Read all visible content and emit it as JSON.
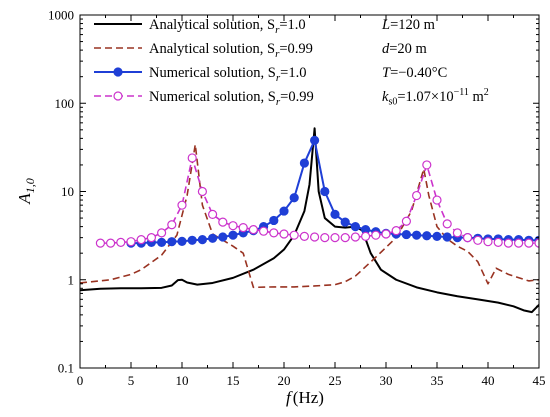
{
  "chart_data": {
    "type": "line",
    "xlabel": {
      "main": "f",
      "unit": "(Hz)"
    },
    "ylabel": {
      "main": "A",
      "sub": "1,0"
    },
    "xlim": [
      0,
      45
    ],
    "ylim": [
      0.1,
      1000
    ],
    "yscale": "log",
    "grid": false,
    "legend_position": "top-left",
    "x_ticks": [
      0,
      5,
      10,
      15,
      20,
      25,
      30,
      35,
      40,
      45
    ],
    "y_ticks": [
      {
        "value": 0.1,
        "label": "0.1"
      },
      {
        "value": 1,
        "label": "1"
      },
      {
        "value": 10,
        "label": "10"
      },
      {
        "value": 100,
        "label": "100"
      },
      {
        "value": 1000,
        "label": "1000"
      }
    ],
    "series": [
      {
        "name": "Analytical solution, Sr=1.0",
        "legend": {
          "text": "Analytical solution, S",
          "sub": "r",
          "suffix": "=1.0"
        },
        "style": "solid",
        "color": "#000000",
        "marker": "none",
        "points": [
          [
            0,
            0.76
          ],
          [
            2,
            0.79
          ],
          [
            4,
            0.8
          ],
          [
            6,
            0.8
          ],
          [
            8,
            0.81
          ],
          [
            9,
            0.86
          ],
          [
            9.6,
            0.99
          ],
          [
            10,
            1.0
          ],
          [
            10.5,
            0.93
          ],
          [
            11.5,
            0.88
          ],
          [
            13,
            0.92
          ],
          [
            15,
            1.05
          ],
          [
            17,
            1.3
          ],
          [
            19,
            1.75
          ],
          [
            20,
            2.2
          ],
          [
            21,
            3.2
          ],
          [
            22,
            6
          ],
          [
            22.5,
            12
          ],
          [
            23,
            52
          ],
          [
            23.4,
            10
          ],
          [
            24,
            5
          ],
          [
            25,
            4
          ],
          [
            26,
            3.9
          ],
          [
            27,
            4.0
          ],
          [
            27.7,
            3.6
          ],
          [
            28.5,
            2.0
          ],
          [
            29.5,
            1.3
          ],
          [
            31,
            1.0
          ],
          [
            33,
            0.82
          ],
          [
            35,
            0.72
          ],
          [
            37,
            0.65
          ],
          [
            39,
            0.6
          ],
          [
            41,
            0.55
          ],
          [
            42.5,
            0.5
          ],
          [
            43.5,
            0.45
          ],
          [
            44.3,
            0.43
          ],
          [
            45,
            0.52
          ]
        ]
      },
      {
        "name": "Analytical solution, Sr=0.99",
        "legend": {
          "text": "Analytical solution, S",
          "sub": "r",
          "suffix": "=0.99"
        },
        "style": "dashed",
        "color": "#993322",
        "marker": "none",
        "points": [
          [
            0,
            0.92
          ],
          [
            3,
            1.0
          ],
          [
            5,
            1.15
          ],
          [
            6,
            1.3
          ],
          [
            8,
            1.9
          ],
          [
            9.5,
            3.2
          ],
          [
            10.5,
            9
          ],
          [
            11.3,
            34
          ],
          [
            12,
            7
          ],
          [
            13,
            3.3
          ],
          [
            15,
            2.4
          ],
          [
            16,
            2.0
          ],
          [
            17,
            0.82
          ],
          [
            19,
            0.83
          ],
          [
            21,
            0.83
          ],
          [
            23,
            0.85
          ],
          [
            25,
            0.88
          ],
          [
            26,
            0.95
          ],
          [
            27,
            1.1
          ],
          [
            29,
            1.8
          ],
          [
            31,
            3.0
          ],
          [
            32.5,
            6
          ],
          [
            33.7,
            18
          ],
          [
            34.2,
            9
          ],
          [
            35,
            4
          ],
          [
            36,
            2.9
          ],
          [
            37,
            2.4
          ],
          [
            38,
            2.1
          ],
          [
            39,
            1.6
          ],
          [
            40,
            0.9
          ],
          [
            40.8,
            1.35
          ],
          [
            42,
            1.15
          ],
          [
            44,
            0.97
          ],
          [
            45,
            1.0
          ]
        ]
      },
      {
        "name": "Numerical solution, Sr=1.0",
        "legend": {
          "text": "Numerical solution, S",
          "sub": "r",
          "suffix": "=1.0"
        },
        "style": "solid",
        "color": "#1f3fd6",
        "marker": "filled-circle",
        "points": [
          [
            5,
            2.6
          ],
          [
            6,
            2.6
          ],
          [
            7,
            2.65
          ],
          [
            8,
            2.65
          ],
          [
            9,
            2.7
          ],
          [
            10,
            2.72
          ],
          [
            11,
            2.8
          ],
          [
            12,
            2.85
          ],
          [
            13,
            2.95
          ],
          [
            14,
            3.05
          ],
          [
            15,
            3.2
          ],
          [
            16,
            3.4
          ],
          [
            17,
            3.6
          ],
          [
            18,
            4.0
          ],
          [
            19,
            4.7
          ],
          [
            20,
            6.0
          ],
          [
            21,
            8.5
          ],
          [
            22,
            21
          ],
          [
            23,
            38
          ],
          [
            24,
            10
          ],
          [
            25,
            5.5
          ],
          [
            26,
            4.5
          ],
          [
            27,
            4.0
          ],
          [
            28,
            3.7
          ],
          [
            29,
            3.5
          ],
          [
            30,
            3.35
          ],
          [
            31,
            3.3
          ],
          [
            32,
            3.25
          ],
          [
            33,
            3.2
          ],
          [
            34,
            3.15
          ],
          [
            35,
            3.1
          ],
          [
            36,
            3.05
          ],
          [
            37,
            3.0
          ],
          [
            38,
            3.0
          ],
          [
            39,
            2.95
          ],
          [
            40,
            2.9
          ],
          [
            41,
            2.9
          ],
          [
            42,
            2.85
          ],
          [
            43,
            2.85
          ],
          [
            44,
            2.8
          ],
          [
            45,
            2.8
          ]
        ]
      },
      {
        "name": "Numerical solution, Sr=0.99",
        "legend": {
          "text": "Numerical solution, S",
          "sub": "r",
          "suffix": "=0.99"
        },
        "style": "dashed",
        "color": "#cc33cc",
        "marker": "open-circle",
        "points": [
          [
            2,
            2.6
          ],
          [
            3,
            2.6
          ],
          [
            4,
            2.65
          ],
          [
            5,
            2.7
          ],
          [
            6,
            2.85
          ],
          [
            7,
            3.0
          ],
          [
            8,
            3.4
          ],
          [
            9,
            4.2
          ],
          [
            10,
            7
          ],
          [
            11,
            24
          ],
          [
            12,
            10
          ],
          [
            13,
            5.5
          ],
          [
            14,
            4.5
          ],
          [
            15,
            4.1
          ],
          [
            16,
            3.9
          ],
          [
            17,
            3.7
          ],
          [
            18,
            3.55
          ],
          [
            19,
            3.4
          ],
          [
            20,
            3.3
          ],
          [
            21,
            3.2
          ],
          [
            22,
            3.1
          ],
          [
            23,
            3.05
          ],
          [
            24,
            3.0
          ],
          [
            25,
            3.0
          ],
          [
            26,
            3.0
          ],
          [
            27,
            3.05
          ],
          [
            28,
            3.1
          ],
          [
            29,
            3.2
          ],
          [
            30,
            3.3
          ],
          [
            31,
            3.6
          ],
          [
            32,
            4.6
          ],
          [
            33,
            9
          ],
          [
            34,
            20
          ],
          [
            35,
            8
          ],
          [
            36,
            4.3
          ],
          [
            37,
            3.4
          ],
          [
            38,
            3.0
          ],
          [
            39,
            2.8
          ],
          [
            40,
            2.7
          ],
          [
            41,
            2.65
          ],
          [
            42,
            2.6
          ],
          [
            43,
            2.6
          ],
          [
            44,
            2.6
          ],
          [
            45,
            2.6
          ]
        ]
      }
    ],
    "annotations": [
      {
        "main": "L",
        "rest": "=120 m"
      },
      {
        "main": "d",
        "rest": "=20 m"
      },
      {
        "main": "T",
        "rest": "=−0.40°C"
      },
      {
        "main": "k",
        "sub": "s0",
        "rest": "=1.07×10",
        "sup": "−11",
        "rest2": " m",
        "sup2": "2"
      }
    ]
  }
}
